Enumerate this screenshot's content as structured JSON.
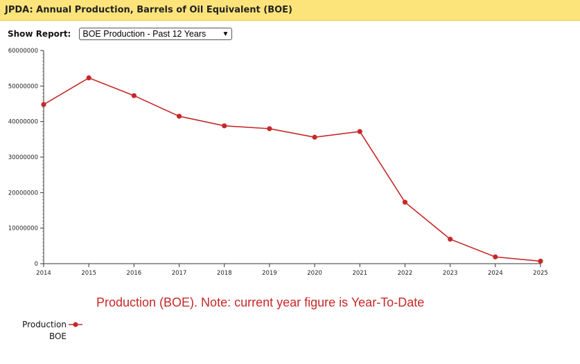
{
  "header": {
    "title": "JPDA: Annual Production, Barrels of Oil Equivalent (BOE)"
  },
  "report": {
    "label": "Show Report:",
    "selected": "BOE Production - Past 12 Years"
  },
  "colors": {
    "header_bg": "#fde47a",
    "series": "#c62828"
  },
  "legend": {
    "line1": "Production",
    "line2": "BOE"
  },
  "chart_data": {
    "type": "line",
    "title": "Production (BOE). Note: current year figure is Year-To-Date",
    "xlabel": "",
    "ylabel": "",
    "categories": [
      "2014",
      "2015",
      "2016",
      "2017",
      "2018",
      "2019",
      "2020",
      "2021",
      "2022",
      "2023",
      "2024",
      "2025"
    ],
    "series": [
      {
        "name": "Production BOE",
        "values": [
          44800000,
          52300000,
          47300000,
          41500000,
          38800000,
          38000000,
          35600000,
          37200000,
          17300000,
          6900000,
          1900000,
          700000
        ]
      }
    ],
    "ylim": [
      0,
      60000000
    ],
    "yticks": [
      "0",
      "10000000",
      "20000000",
      "30000000",
      "40000000",
      "50000000",
      "60000000"
    ],
    "legend_position": "bottom-left"
  }
}
